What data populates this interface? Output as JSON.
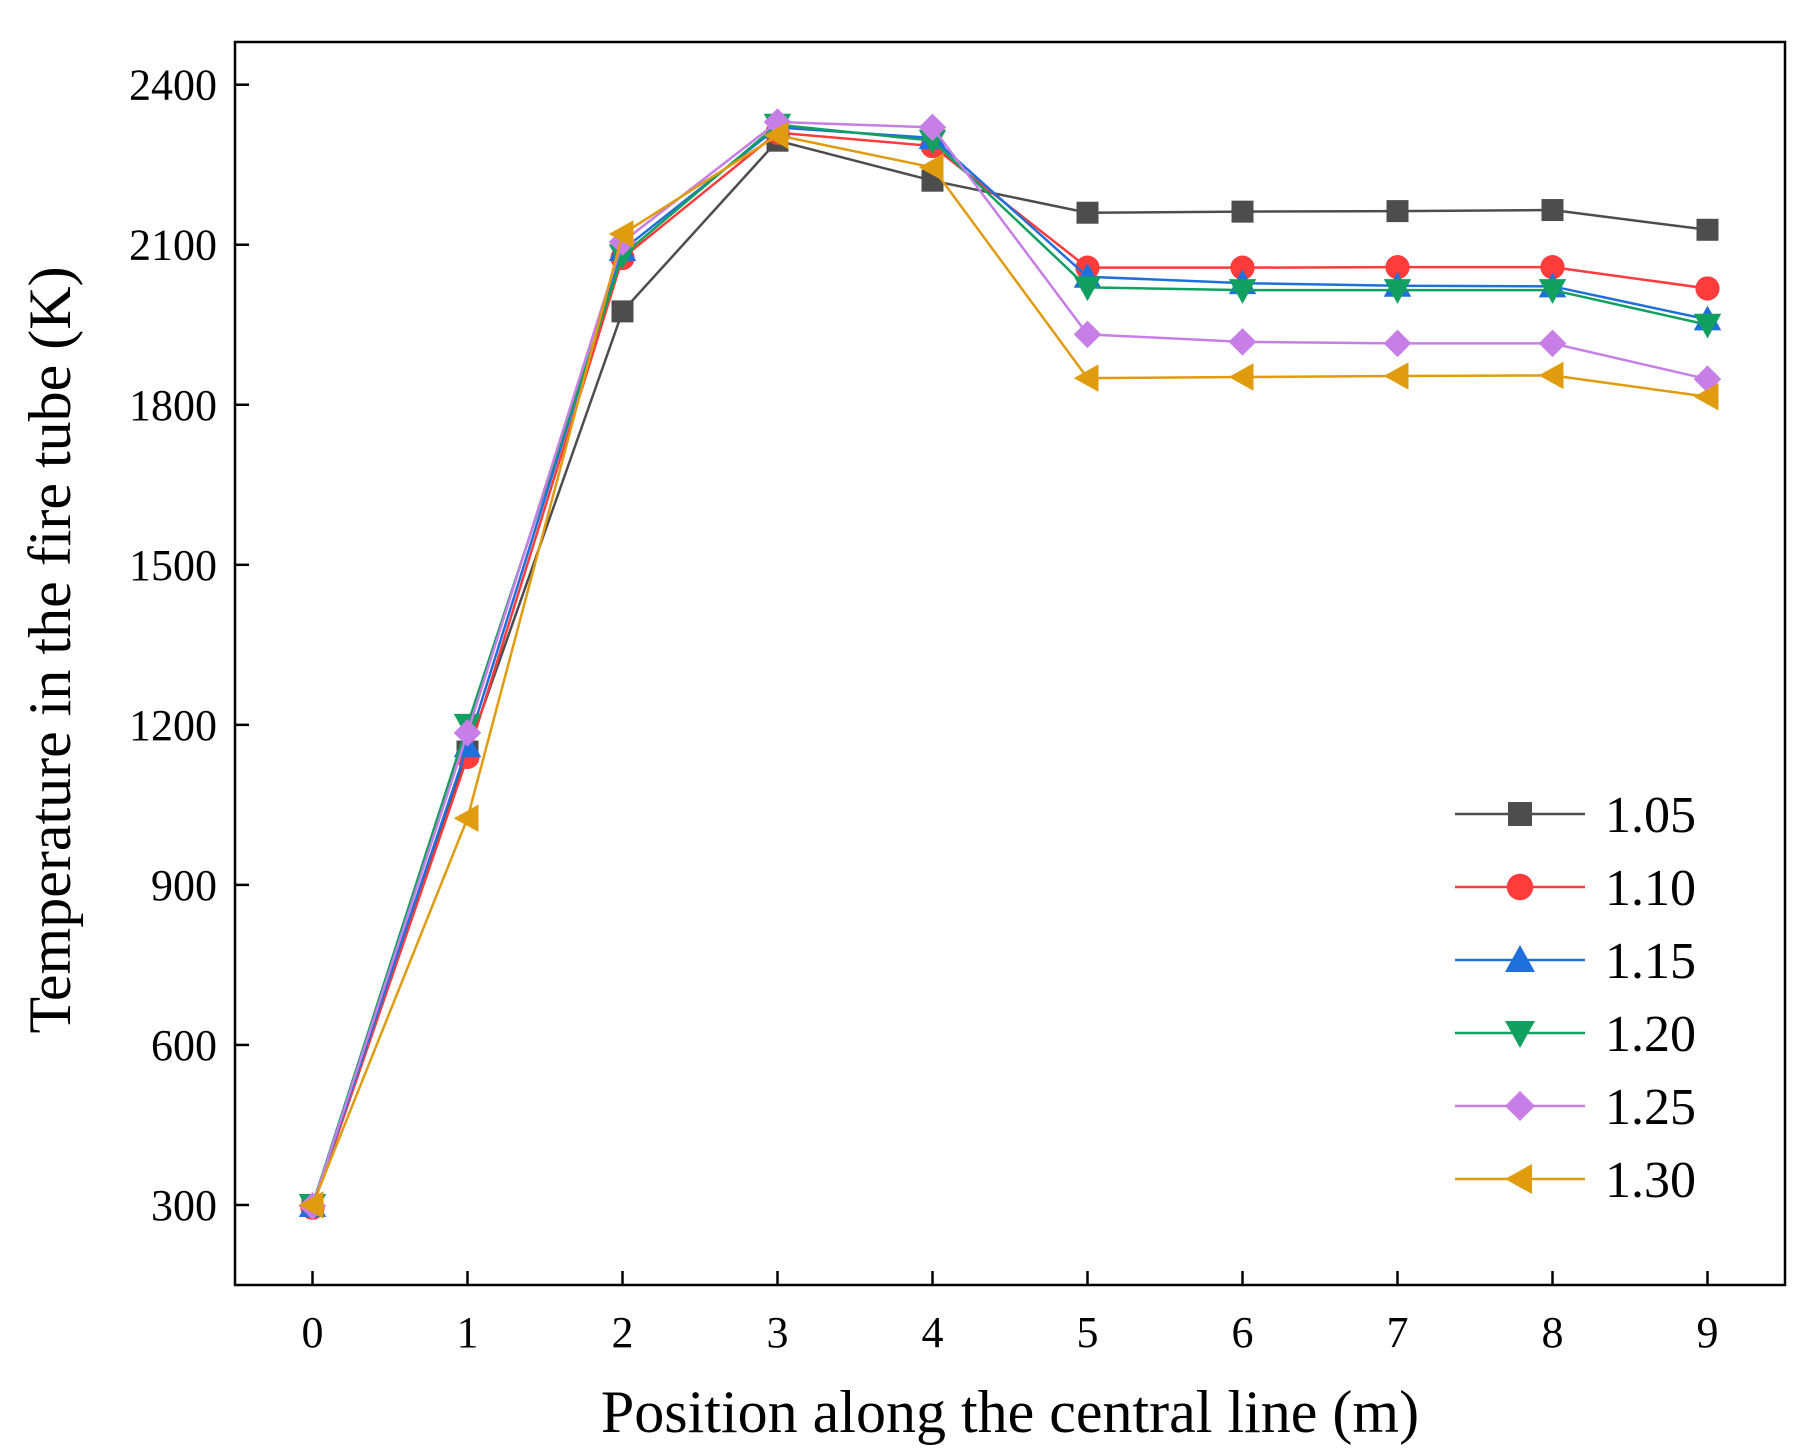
{
  "chart_data": {
    "type": "line",
    "title": "",
    "xlabel": "Position along the central line (m)",
    "ylabel": "Temperature in the fire tube (K)",
    "x": [
      0,
      1,
      2,
      3,
      4,
      5,
      6,
      7,
      8,
      9
    ],
    "x_ticks": [
      "0",
      "1",
      "2",
      "3",
      "4",
      "5",
      "6",
      "7",
      "8",
      "9"
    ],
    "y_ticks": [
      "300",
      "600",
      "900",
      "1200",
      "1500",
      "1800",
      "2100",
      "2400"
    ],
    "xlim": [
      -0.5,
      9.5
    ],
    "ylim": [
      150,
      2480
    ],
    "grid": false,
    "legend_position": "bottom-right",
    "series": [
      {
        "name": "1.05",
        "color": "#4d4d4d",
        "marker": "square",
        "values": [
          300,
          1150,
          1975,
          2295,
          2220,
          2160,
          2162,
          2163,
          2165,
          2128
        ]
      },
      {
        "name": "1.10",
        "color": "#ff3b3b",
        "marker": "circle",
        "values": [
          295,
          1140,
          2075,
          2310,
          2285,
          2057,
          2057,
          2058,
          2058,
          2018
        ]
      },
      {
        "name": "1.15",
        "color": "#1f6fdc",
        "marker": "triangle-up",
        "values": [
          298,
          1160,
          2090,
          2320,
          2300,
          2040,
          2028,
          2023,
          2022,
          1960
        ]
      },
      {
        "name": "1.20",
        "color": "#12a060",
        "marker": "triangle-down",
        "values": [
          300,
          1200,
          2080,
          2325,
          2295,
          2020,
          2015,
          2015,
          2015,
          1950
        ]
      },
      {
        "name": "1.25",
        "color": "#c77ee6",
        "marker": "diamond",
        "values": [
          298,
          1185,
          2105,
          2330,
          2320,
          1932,
          1918,
          1915,
          1915,
          1848
        ]
      },
      {
        "name": "1.30",
        "color": "#e09b0f",
        "marker": "triangle-left",
        "values": [
          300,
          1025,
          2120,
          2305,
          2245,
          1850,
          1852,
          1854,
          1855,
          1815
        ]
      }
    ]
  }
}
